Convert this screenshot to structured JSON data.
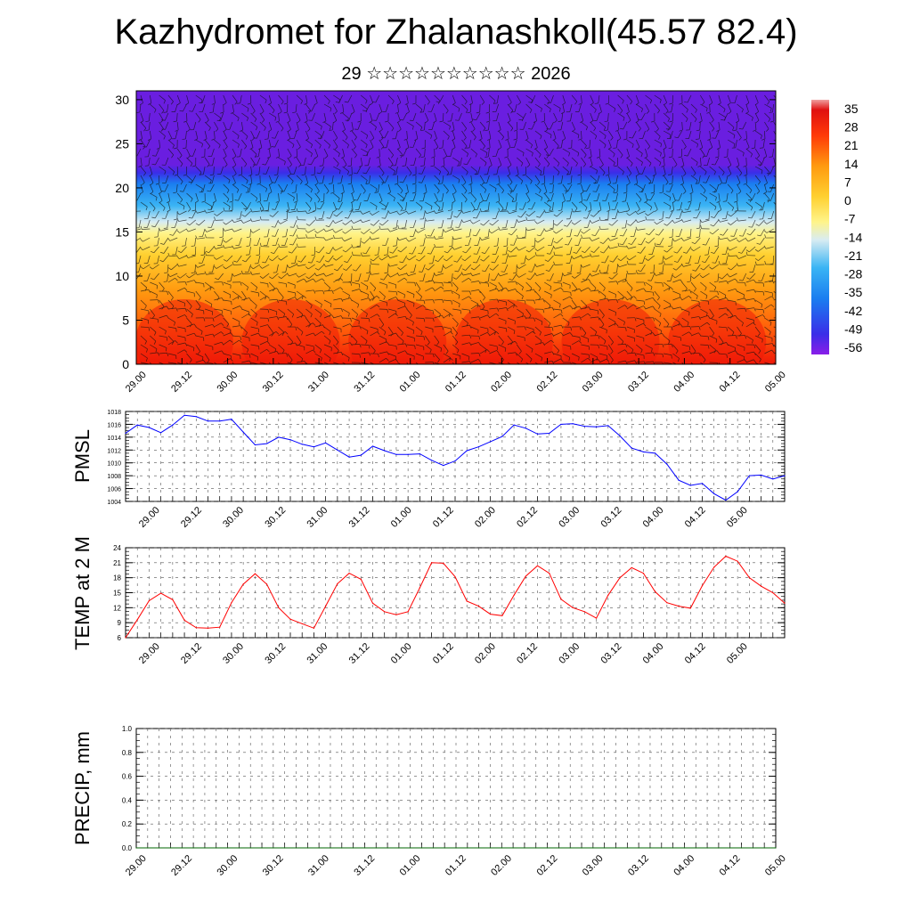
{
  "header": {
    "title": "Kazhydromet for Zhalanashkoll(45.57 82.4)",
    "subtitle": "29 ☆☆☆☆☆☆☆☆☆☆ 2026"
  },
  "chart_data": [
    {
      "type": "heatmap",
      "name": "temperature-wind-cross-section",
      "x_ticks": [
        "29.00",
        "29.12",
        "30.00",
        "30.12",
        "31.00",
        "31.12",
        "01.00",
        "01.12",
        "02.00",
        "02.12",
        "03.00",
        "03.12",
        "04.00",
        "04.12",
        "05.00"
      ],
      "y_ticks": [
        0,
        5,
        10,
        15,
        20,
        25,
        30
      ],
      "ylim": [
        0,
        31
      ],
      "colorbar_ticks": [
        35,
        28,
        21,
        14,
        7,
        0,
        -7,
        -14,
        -21,
        -28,
        -35,
        -42,
        -49,
        -56
      ],
      "colors": [
        "#6a1ee0",
        "#3a2ee8",
        "#1a7ef0",
        "#3ab4f4",
        "#d8ecf2",
        "#fff48a",
        "#ffd030",
        "#ff9a10",
        "#ff6a0a",
        "#f01808"
      ]
    },
    {
      "type": "line",
      "name": "pmsl",
      "ylabel": "PMSL",
      "ylim": [
        1004,
        1018
      ],
      "y_ticks": [
        1004,
        1006,
        1008,
        1010,
        1012,
        1014,
        1016,
        1018
      ],
      "x_ticks": [
        "29.00",
        "29.12",
        "30.00",
        "30.12",
        "31.00",
        "31.12",
        "01.00",
        "01.12",
        "02.00",
        "02.12",
        "03.00",
        "03.12",
        "04.00",
        "04.12",
        "05.00"
      ],
      "color": "#0000ff",
      "x_step_hours": 3,
      "values": [
        1014.6,
        1015.9,
        1015.5,
        1014.7,
        1015.9,
        1017.4,
        1017.2,
        1016.5,
        1016.5,
        1016.8,
        1014.8,
        1012.8,
        1013.0,
        1014.0,
        1013.6,
        1012.9,
        1012.5,
        1013.1,
        1012.0,
        1010.9,
        1011.2,
        1012.6,
        1011.9,
        1011.3,
        1011.3,
        1011.4,
        1010.4,
        1009.6,
        1010.3,
        1011.9,
        1012.5,
        1013.3,
        1014.1,
        1015.9,
        1015.4,
        1014.5,
        1014.6,
        1016.0,
        1016.1,
        1015.7,
        1015.6,
        1015.8,
        1014.2,
        1012.3,
        1011.7,
        1011.5,
        1009.8,
        1007.3,
        1006.5,
        1006.8,
        1005.2,
        1004.2,
        1005.5,
        1008.0,
        1008.1,
        1007.5,
        1008.0
      ]
    },
    {
      "type": "line",
      "name": "temp-2m",
      "ylabel": "TEMP at 2 M",
      "ylim": [
        6,
        24
      ],
      "y_ticks": [
        6,
        9,
        12,
        15,
        18,
        21,
        24
      ],
      "x_ticks": [
        "29.00",
        "29.12",
        "30.00",
        "30.12",
        "31.00",
        "31.12",
        "01.00",
        "01.12",
        "02.00",
        "02.12",
        "03.00",
        "03.12",
        "04.00",
        "04.12",
        "05.00"
      ],
      "color": "#ff0000",
      "x_step_hours": 3,
      "values": [
        6.0,
        9.6,
        13.4,
        14.9,
        13.6,
        9.5,
        8.0,
        7.9,
        8.1,
        13.0,
        16.7,
        18.8,
        16.7,
        12.0,
        9.7,
        8.8,
        7.9,
        12.3,
        16.8,
        18.9,
        17.7,
        12.9,
        11.2,
        10.6,
        11.2,
        16.0,
        21.0,
        20.9,
        18.2,
        13.3,
        12.3,
        10.7,
        10.4,
        14.5,
        18.3,
        20.4,
        18.9,
        13.7,
        12.0,
        11.2,
        9.9,
        14.5,
        18.0,
        20.0,
        18.9,
        15.2,
        13.0,
        12.3,
        11.9,
        16.4,
        20.1,
        22.3,
        21.3,
        18.0,
        16.3,
        15.0,
        12.9
      ]
    },
    {
      "type": "line",
      "name": "precip",
      "ylabel": "PRECIP, mm",
      "ylim": [
        0,
        1
      ],
      "y_ticks": [
        "0.0",
        "0.2",
        "0.4",
        "0.6",
        "0.8",
        "1.0"
      ],
      "x_ticks": [
        "29.00",
        "29.12",
        "30.00",
        "30.12",
        "31.00",
        "31.12",
        "01.00",
        "01.12",
        "02.00",
        "02.12",
        "03.00",
        "03.12",
        "04.00",
        "04.12",
        "05.00"
      ],
      "color": "#006400",
      "x_step_hours": 3,
      "values": [
        0,
        0,
        0,
        0,
        0,
        0,
        0,
        0,
        0,
        0,
        0,
        0,
        0,
        0,
        0,
        0,
        0,
        0,
        0,
        0,
        0,
        0,
        0,
        0,
        0,
        0,
        0,
        0,
        0,
        0,
        0,
        0,
        0,
        0,
        0,
        0,
        0,
        0,
        0,
        0,
        0,
        0,
        0,
        0,
        0,
        0,
        0,
        0,
        0,
        0,
        0,
        0,
        0,
        0,
        0,
        0,
        0
      ]
    }
  ]
}
